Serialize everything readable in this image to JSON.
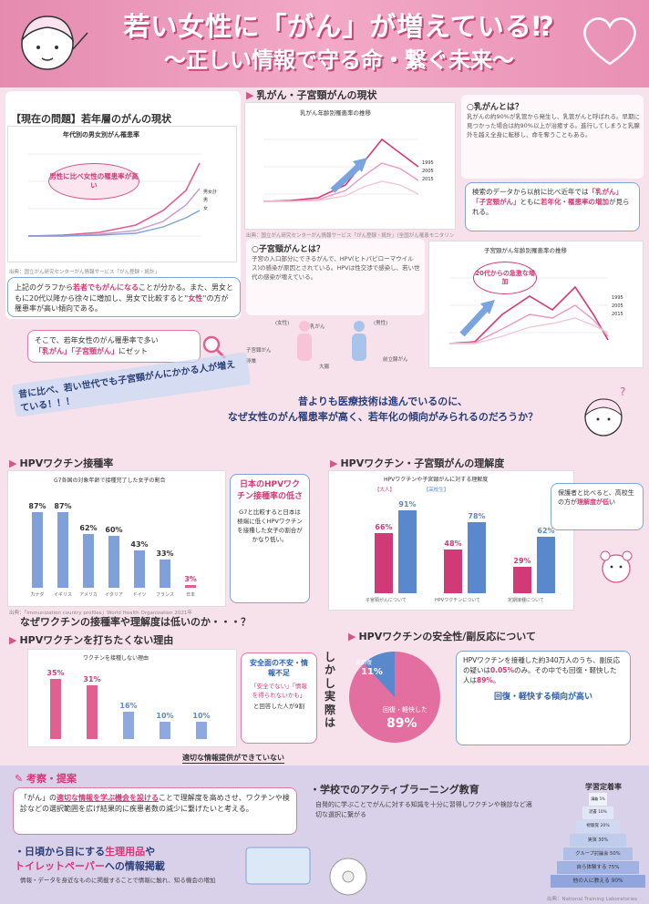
{
  "header": {
    "title": "若い女性に「がん」が増えている⁉",
    "subtitle": "〜正しい情報で守る命・繋ぐ未来〜"
  },
  "sec1": {
    "title": "【現在の問題】若年層のがんの現状",
    "chart_title": "年代別の男女別がん罹患率",
    "bubble": "男性に比べ女性の罹患率が高い",
    "legend": [
      "男女計",
      "男",
      "女"
    ],
    "caption": "出典：国立がん研究センターがん情報サービス「がん登録・統計」",
    "text_pre": "上記のグラフから",
    "text_hl1": "若者でもがんになる",
    "text_mid": "ことが分かる。また、男女ともに20代以降から徐々に増加し、男女で比較すると",
    "text_hl2": "\"女性\"",
    "text_post": "の方が罹患率が高い傾向である。",
    "note_pre": "そこで、若年女性のがん罹患率で多い",
    "note_hl1": "「乳がん」",
    "note_hl2": "「子宮頸がん」",
    "note_post": "にゼット"
  },
  "sec2": {
    "title": "乳がん・子宮頸がんの現状",
    "chart_title": "乳がん年齢別罹患率の推移",
    "legend": [
      "1995",
      "2005",
      "2015"
    ],
    "caption": "出典：国立がん研究センターがん情報サービス「がん登録・統計」（全国がん罹患モニタリング集計）",
    "breast_q": "○乳がんとは？",
    "breast_text": "乳がんの約90%が乳管から発生し、乳管がんと呼ばれる。早期に見つかった場合は約90%以上が治癒する。進行してしまうと乳腺外を越え全身に転移し、命を奪うこともある。",
    "cervix_q": "○子宮頸がんとは？",
    "cervix_text": "子宮の入口部分にできるがんで、HPV(ヒトパピローマウイルス)の感染が原因とされている。HPVは性交渉で感染し、若い世代の感染が増えている。",
    "cervix_chart_title": "子宮頸がん年齢別罹患率の推移",
    "cervix_bubble": "20代からの急激な増加",
    "cervix_legend": [
      "1995",
      "2005",
      "2015"
    ],
    "trend_pre": "検索のデータから以前に比べ近年では",
    "trend_hl1": "「乳がん」",
    "trend_hl2": "「子宮頸がん」",
    "trend_mid": "ともに",
    "trend_hl3": "若年化・罹患率の増加",
    "trend_post": "が見られる。",
    "body_labels": [
      "(女性)",
      "(男性)",
      "乳がん",
      "子宮頸がん",
      "前立腺がん",
      "卵巣",
      "大腸"
    ]
  },
  "mid": {
    "slanted": "昔に比べ、若い世代でも子宮頸がんにかかる人が増えている！！！",
    "question_line1": "昔よりも医療技術は進んでいるのに、",
    "question_line2": "なぜ女性のがん罹患率が高く、若年化の傾向がみられるのだろうか？"
  },
  "vaccine": {
    "title": "HPVワクチン接種率",
    "chart_title": "G7各国の対象年齢で接種完了した女子の割合",
    "countries": [
      "カナダ",
      "イギリス",
      "アメリカ",
      "イタリア",
      "ドイツ",
      "フランス",
      "日本"
    ],
    "values": [
      "87%",
      "87%",
      "62%",
      "60%",
      "43%",
      "33%",
      "3%"
    ],
    "caption": "出典：「Immunization country profiles」World Health Organization 2021年",
    "side_title": "日本のHPVワクチン接種率の低さ",
    "side_text": "G7と比較すると日本は極端に低くHPVワクチンを接種した女子の割合がかなり低い。"
  },
  "understand": {
    "title": "HPVワクチン・子宮頸がんの理解度",
    "chart_title": "HPVワクチンや子宮頸がんに対する理解度",
    "legend": [
      "【大人】",
      "【高校生】"
    ],
    "values": [
      "66%",
      "91%",
      "48%",
      "78%",
      "29%",
      "62%"
    ],
    "groups": [
      "子宮頸がんについて",
      "HPVワクチンについて",
      "定期接種について"
    ],
    "side_text_pre": "保護者と比べると、",
    "side_text_mid": "高校生の方が",
    "side_text_hl": "理解度が低い"
  },
  "why": {
    "question": "なぜワクチンの接種率や理解度は低いのか・・・？",
    "title": "HPVワクチンを打ちたくない理由",
    "chart_title": "ワクチンを接種しない理由",
    "values": [
      "35%",
      "31%",
      "16%",
      "10%",
      "10%"
    ],
    "note_title": "安全面の不安・情報不足",
    "note_quote": "「安全でない」「情報を得られないかも」",
    "note_post": "と回答した人が9割",
    "bottom_note": "適切な情報提供ができていない"
  },
  "safety": {
    "title": "HPVワクチンの安全性/副反応について",
    "pie_values": [
      "11%",
      "89%"
    ],
    "pie_label_recovery": "回復・軽快した",
    "pie_label_unknown": "未回復",
    "vertical": "しかし実際は",
    "text_pre": "HPVワクチンを接種した約340万人のうち、副反応の疑いは",
    "text_hl1": "0.05%",
    "text_mid": "のみ。その中でも回復・軽快した人は",
    "text_hl2": "89%",
    "text_post": "。",
    "emph": "回復・軽快する傾向が高い"
  },
  "proposal": {
    "title": "考察・提案",
    "text_pre": "「がん」の",
    "text_hl": "適切な情報を学ぶ機会を設ける",
    "text_post": "ことで理解度を高めさせ、ワクチンや検診などの選択範囲を広げ結果的に疾患者数の減少に繋げたいと考える。",
    "active_title": "・学校でのアクティブラーニング教育",
    "active_text": "自発的に学ぶことでがんに対する知識を十分に習得しワクチンや検診など適切な選択に繋がる",
    "daily_pre": "・日頃から目にする",
    "daily_hl1": "生理用品",
    "daily_mid": "や",
    "daily_hl2": "トイレットペーパー",
    "daily_post": "への情報掲載",
    "daily_text": "情報・データを身近なものに掲載することで情報に触れ、知る機会の増加",
    "pyramid_title": "学習定着率",
    "pyramid": [
      "講義 5%",
      "読書 10%",
      "視聴覚 20%",
      "実演 30%",
      "グループ討論会 50%",
      "自ら体験する 75%",
      "他の人に教える 90%"
    ],
    "pyramid_caption": "出典：National Training Laboratories"
  }
}
